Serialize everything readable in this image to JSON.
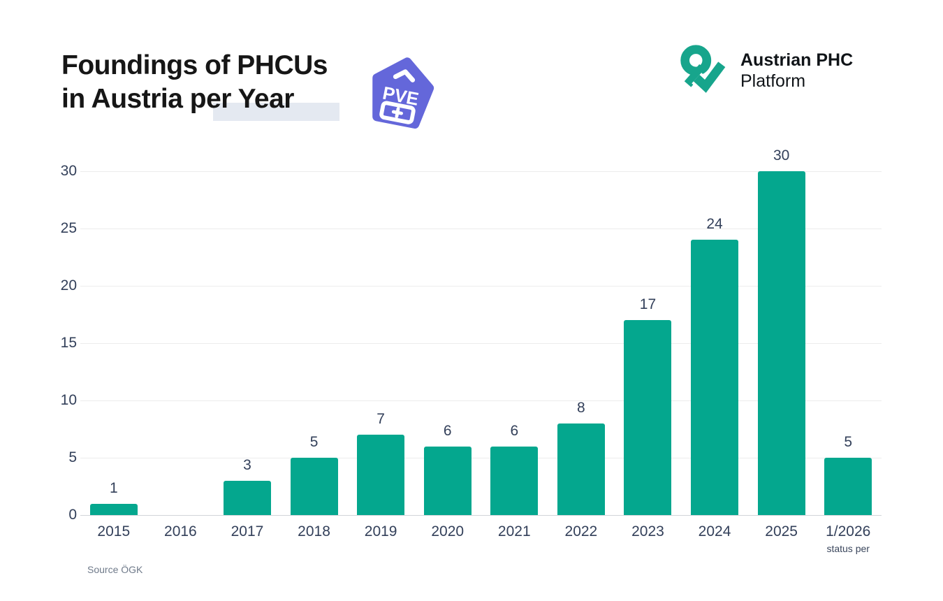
{
  "header": {
    "title_line1": "Foundings of PHCUs",
    "title_line2": "in Austria per Year",
    "pve_badge_label": "PVE",
    "logo_title": "Austrian PHC",
    "logo_subtitle": "Platform"
  },
  "footer": {
    "source": "Source ÖGK"
  },
  "colors": {
    "bar": "#04a78e",
    "logo": "#17a58c",
    "badge": "#6467da",
    "title_highlight": "#e4e9f1",
    "axis_text": "#33405a"
  },
  "chart_data": {
    "type": "bar",
    "title": "Foundings of PHCUs in Austria per Year",
    "categories": [
      "2015",
      "2016",
      "2017",
      "2018",
      "2019",
      "2020",
      "2021",
      "2022",
      "2023",
      "2024",
      "2025",
      "1/2026"
    ],
    "values": [
      1,
      0,
      3,
      5,
      7,
      6,
      6,
      8,
      17,
      24,
      30,
      5
    ],
    "last_category_note": "status per",
    "xlabel": "",
    "ylabel": "",
    "yticks": [
      0,
      5,
      10,
      15,
      20,
      25,
      30
    ],
    "ylim": [
      0,
      30
    ],
    "grid": true,
    "legend": "none",
    "bar_color": "#04a78e",
    "source": "Source ÖGK"
  }
}
